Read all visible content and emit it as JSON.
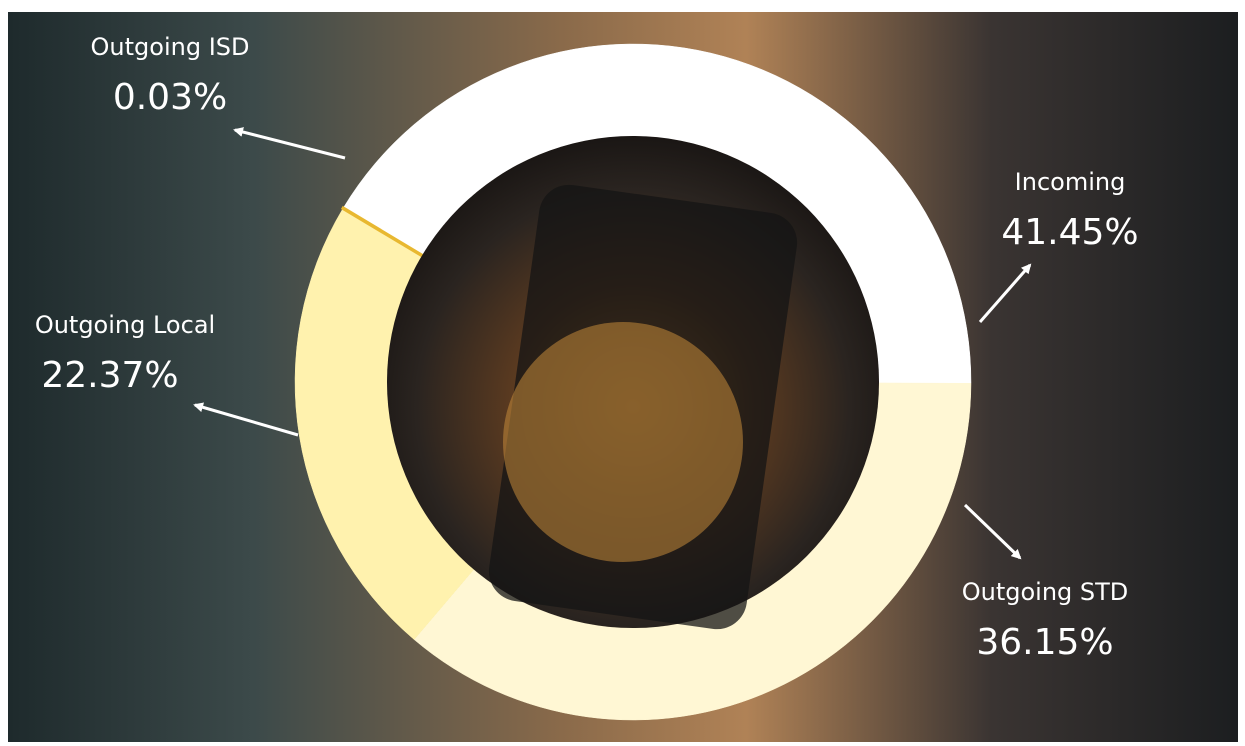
{
  "chart_data": {
    "type": "pie",
    "donut": true,
    "categories": [
      "Incoming",
      "Outgoing STD",
      "Outgoing Local",
      "Outgoing ISD"
    ],
    "values": [
      41.45,
      36.15,
      22.37,
      0.03
    ],
    "value_labels": [
      "41.45%",
      "36.15%",
      "22.37%",
      "0.03%"
    ],
    "colors": [
      "#ffffff",
      "#fff7d4",
      "#fff2ae",
      "#e8b830"
    ]
  }
}
